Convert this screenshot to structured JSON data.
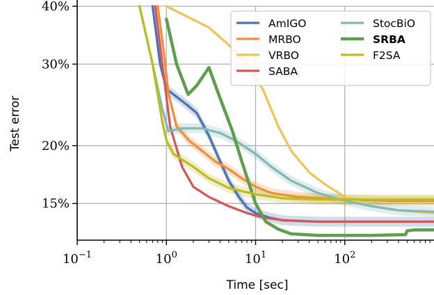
{
  "chart_data": {
    "type": "line",
    "xlabel": "Time [sec]",
    "ylabel": "Test error",
    "xscale": "log",
    "yscale": "log",
    "xlim": [
      0.1,
      1000
    ],
    "ylim": [
      12.5,
      40
    ],
    "xticks": [
      {
        "value": 0.1,
        "base": "10",
        "exp": "−1"
      },
      {
        "value": 1,
        "base": "10",
        "exp": "0"
      },
      {
        "value": 10,
        "base": "10",
        "exp": "1"
      },
      {
        "value": 100,
        "base": "10",
        "exp": "2"
      }
    ],
    "yticks": [
      {
        "value": 15,
        "label": "15%"
      },
      {
        "value": 20,
        "label": "20%"
      },
      {
        "value": 30,
        "label": "30%"
      },
      {
        "value": 40,
        "label": "40%"
      }
    ],
    "grid": true,
    "legend": "top-right",
    "series": [
      {
        "name": "AmIGO",
        "color": "#4c72b0",
        "bold": false,
        "band": true,
        "points": [
          [
            0.7,
            40
          ],
          [
            0.85,
            30
          ],
          [
            1.0,
            26.5
          ],
          [
            1.3,
            25.5
          ],
          [
            1.7,
            24.5
          ],
          [
            2.2,
            23.5
          ],
          [
            3.0,
            21.0
          ],
          [
            4.0,
            18.5
          ],
          [
            5.0,
            16.8
          ],
          [
            6.5,
            15.5
          ],
          [
            8,
            14.7
          ],
          [
            10,
            14.3
          ],
          [
            14,
            14.0
          ],
          [
            20,
            13.8
          ],
          [
            50,
            13.7
          ],
          [
            100,
            13.7
          ],
          [
            300,
            13.7
          ],
          [
            1000,
            13.7
          ]
        ]
      },
      {
        "name": "MRBO",
        "color": "#ee8f3e",
        "bold": false,
        "band": true,
        "points": [
          [
            0.8,
            40
          ],
          [
            0.95,
            31
          ],
          [
            1.05,
            26.0
          ],
          [
            1.3,
            22.0
          ],
          [
            1.8,
            20.5
          ],
          [
            2.5,
            19.5
          ],
          [
            3.5,
            18.5
          ],
          [
            5,
            17.8
          ],
          [
            7,
            17.0
          ],
          [
            10,
            16.3
          ],
          [
            15,
            15.8
          ],
          [
            30,
            15.5
          ],
          [
            100,
            15.3
          ],
          [
            300,
            15.2
          ],
          [
            1000,
            15.2
          ]
        ]
      },
      {
        "name": "VRBO",
        "color": "#f0c45b",
        "bold": false,
        "band": false,
        "points": [
          [
            1.0,
            40
          ],
          [
            3,
            36
          ],
          [
            5,
            33
          ],
          [
            8,
            30
          ],
          [
            12,
            26.5
          ],
          [
            18,
            22
          ],
          [
            25,
            19.5
          ],
          [
            40,
            17.5
          ],
          [
            60,
            16.5
          ],
          [
            100,
            15.5
          ],
          [
            200,
            14.8
          ],
          [
            400,
            14.5
          ],
          [
            1000,
            14.3
          ]
        ]
      },
      {
        "name": "SABA",
        "color": "#d0585b",
        "bold": false,
        "band": false,
        "points": [
          [
            0.75,
            40
          ],
          [
            0.9,
            30
          ],
          [
            1.1,
            22
          ],
          [
            1.5,
            18
          ],
          [
            2.0,
            16.3
          ],
          [
            3,
            15.5
          ],
          [
            5,
            14.8
          ],
          [
            8,
            14.3
          ],
          [
            12,
            14.0
          ],
          [
            20,
            13.8
          ],
          [
            50,
            13.7
          ],
          [
            100,
            13.7
          ],
          [
            1000,
            13.7
          ]
        ]
      },
      {
        "name": "StocBiO",
        "color": "#82b8b5",
        "bold": false,
        "band": true,
        "points": [
          [
            0.5,
            40
          ],
          [
            0.7,
            30
          ],
          [
            0.9,
            24
          ],
          [
            1.05,
            21.5
          ],
          [
            1.5,
            21.8
          ],
          [
            2.5,
            21.8
          ],
          [
            4,
            21.3
          ],
          [
            6,
            20.5
          ],
          [
            10,
            19.2
          ],
          [
            15,
            18.0
          ],
          [
            25,
            16.8
          ],
          [
            50,
            15.8
          ],
          [
            100,
            15.2
          ],
          [
            200,
            14.8
          ],
          [
            400,
            14.5
          ],
          [
            1000,
            14.4
          ]
        ]
      },
      {
        "name": "SRBA",
        "color": "#5f9e4c",
        "bold": true,
        "band": false,
        "points": [
          [
            1.0,
            37.5
          ],
          [
            1.3,
            30
          ],
          [
            1.75,
            25.8
          ],
          [
            2.2,
            27.0
          ],
          [
            3.0,
            29.5
          ],
          [
            3.8,
            26
          ],
          [
            5.5,
            21.5
          ],
          [
            7,
            18.5
          ],
          [
            8.5,
            16.5
          ],
          [
            10,
            15.0
          ],
          [
            13,
            13.7
          ],
          [
            18,
            13.2
          ],
          [
            25,
            12.9
          ],
          [
            50,
            12.8
          ],
          [
            200,
            12.8
          ],
          [
            480,
            12.85
          ],
          [
            500,
            13.1
          ],
          [
            600,
            13.15
          ],
          [
            1000,
            13.15
          ]
        ]
      },
      {
        "name": "F2SA",
        "color": "#bcbd22",
        "bold": false,
        "band": true,
        "points": [
          [
            0.5,
            40
          ],
          [
            0.7,
            30
          ],
          [
            0.9,
            22.5
          ],
          [
            1.0,
            20.5
          ],
          [
            1.2,
            19.2
          ],
          [
            1.6,
            18.5
          ],
          [
            2.0,
            18.0
          ],
          [
            3.0,
            17.0
          ],
          [
            5,
            16.2
          ],
          [
            10,
            15.7
          ],
          [
            20,
            15.4
          ],
          [
            50,
            15.3
          ],
          [
            100,
            15.3
          ],
          [
            300,
            15.3
          ],
          [
            1000,
            15.3
          ]
        ]
      }
    ]
  }
}
